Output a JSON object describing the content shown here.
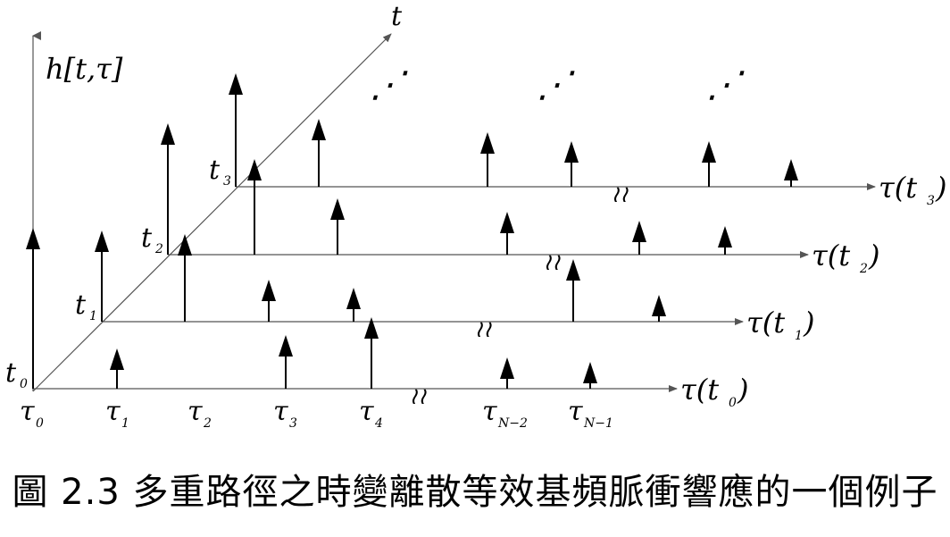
{
  "diagram": {
    "vertical_axis_label": "h[t,τ]",
    "diagonal_axis_label": "t",
    "time_labels": [
      "t",
      "t",
      "t",
      "t"
    ],
    "time_subscripts": [
      "0",
      "1",
      "2",
      "3"
    ],
    "delay_axis_labels": [
      {
        "main": "τ(t",
        "sub": "0",
        "close": ")"
      },
      {
        "main": "τ(t",
        "sub": "1",
        "close": ")"
      },
      {
        "main": "τ(t",
        "sub": "2",
        "close": ")"
      },
      {
        "main": "τ(t",
        "sub": "3",
        "close": ")"
      }
    ],
    "delay_tick_labels": [
      {
        "main": "τ",
        "sub": "0"
      },
      {
        "main": "τ",
        "sub": "1"
      },
      {
        "main": "τ",
        "sub": "2"
      },
      {
        "main": "τ",
        "sub": "3"
      },
      {
        "main": "τ",
        "sub": "4"
      },
      {
        "main": "τ",
        "sub": "N−2"
      },
      {
        "main": "τ",
        "sub": "N−1"
      }
    ],
    "ellipsis": "⋰",
    "break_mark": "≀≀"
  },
  "caption": "圖 2.3 多重路徑之時變離散等效基頻脈衝響應的一個例子"
}
